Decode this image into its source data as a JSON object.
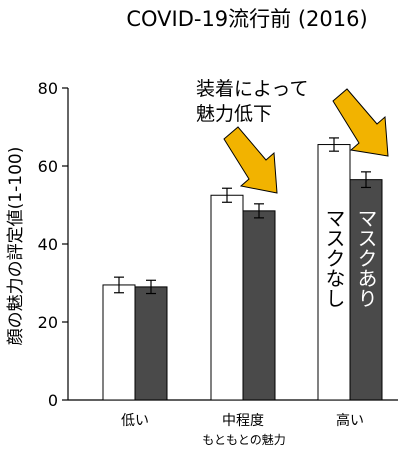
{
  "chart_data": {
    "type": "bar",
    "title": "COVID-19流行前 (2016)",
    "ylabel": "顔の魅力の評定値(1-100)",
    "xlabel": "もともとの魅力",
    "categories": [
      "低い",
      "中程度",
      "高い"
    ],
    "ylim": [
      0,
      80
    ],
    "yticks": [
      0,
      20,
      40,
      60,
      80
    ],
    "series": [
      {
        "name": "マスクなし",
        "values": [
          29.5,
          52.5,
          65.5
        ],
        "errors": [
          2.0,
          1.8,
          1.7
        ],
        "color": "#ffffff"
      },
      {
        "name": "マスクあり",
        "values": [
          29.0,
          48.5,
          56.5
        ],
        "errors": [
          1.7,
          1.8,
          2.0
        ],
        "color": "#4a4a4a"
      }
    ],
    "annotation": {
      "lines": [
        "装着によって",
        "魅力低下"
      ]
    },
    "arrow_color": "#f2b300",
    "grid": false,
    "legend": "inline-in-bars"
  }
}
